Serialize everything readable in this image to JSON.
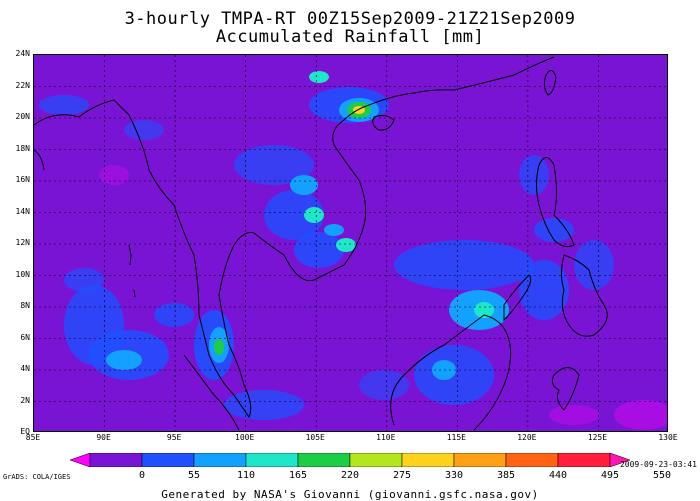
{
  "title_line1": "3-hourly TMPA-RT 00Z15Sep2009-21Z21Sep2009",
  "title_line2": "Accumulated Rainfall [mm]",
  "lat_ticks": [
    "24N",
    "22N",
    "20N",
    "18N",
    "16N",
    "14N",
    "12N",
    "10N",
    "8N",
    "6N",
    "4N",
    "2N",
    "EQ"
  ],
  "lon_ticks": [
    "85E",
    "90E",
    "95E",
    "100E",
    "105E",
    "110E",
    "115E",
    "120E",
    "125E",
    "130E"
  ],
  "colorbar": {
    "labels": [
      "0",
      "55",
      "110",
      "165",
      "220",
      "275",
      "330",
      "385",
      "440",
      "495",
      "550"
    ],
    "colors": [
      "#ff00ff",
      "#7a14d4",
      "#1e50ff",
      "#14a0ff",
      "#1ee6c8",
      "#1ecd46",
      "#b4e61e",
      "#ffd21e",
      "#ffa014",
      "#ff6414",
      "#ff1e3c",
      "#ff14b4"
    ]
  },
  "grads_credit": "GrADS: COLA/IGES",
  "timestamp": "2009-09-23-03:41",
  "footer": "Generated by NASA's Giovanni (giovanni.gsfc.nasa.gov)"
}
